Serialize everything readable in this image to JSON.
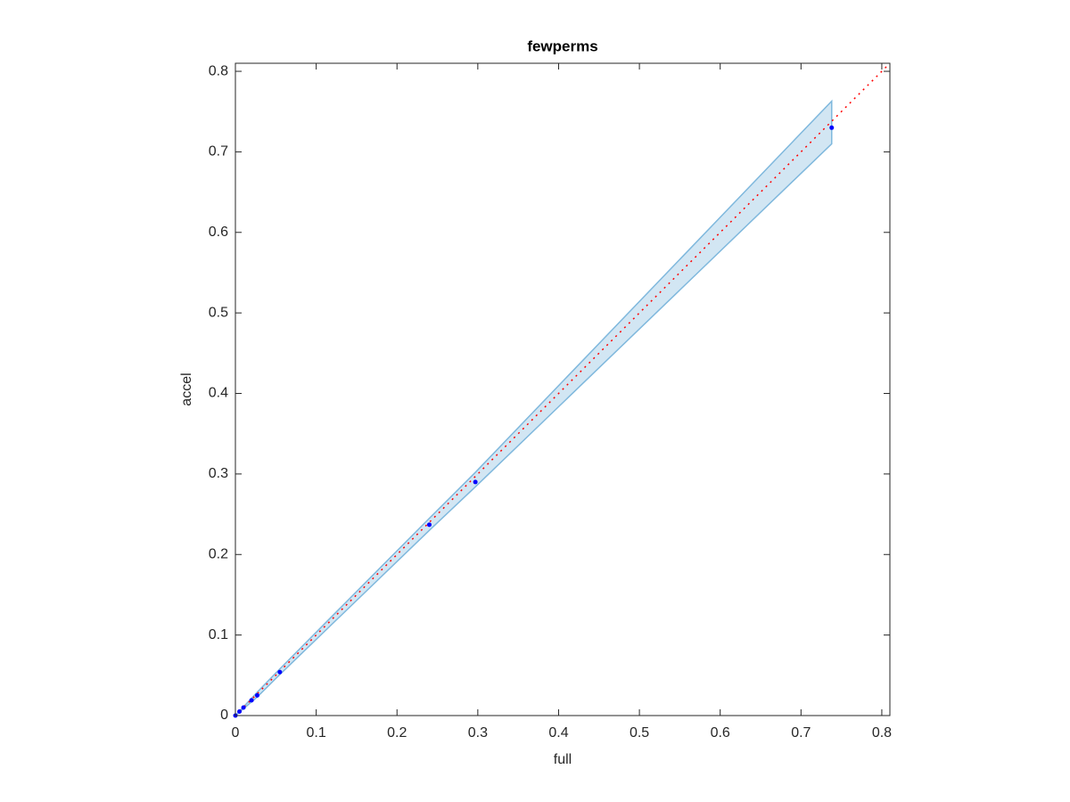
{
  "chart_data": {
    "type": "scatter",
    "title": "fewperms",
    "x_label": "full",
    "y_label": "accel",
    "xlim": [
      0,
      0.81
    ],
    "ylim": [
      0,
      0.81
    ],
    "xticks": [
      0,
      0.1,
      0.2,
      0.3,
      0.4,
      0.5,
      0.6,
      0.7,
      0.8
    ],
    "yticks": [
      0,
      0.1,
      0.2,
      0.3,
      0.4,
      0.5,
      0.6,
      0.7,
      0.8
    ],
    "band": {
      "color": "#7fb8dd",
      "x": [
        0,
        0.027,
        0.055,
        0.24,
        0.297,
        0.738
      ],
      "lower": [
        0,
        0.023,
        0.051,
        0.23,
        0.284,
        0.71
      ],
      "upper": [
        0,
        0.029,
        0.058,
        0.245,
        0.302,
        0.763
      ]
    },
    "reference_line": {
      "color": "#ff0000",
      "x": [
        0,
        0.81
      ],
      "y": [
        0,
        0.81
      ]
    },
    "points": {
      "color": "#0000ff",
      "x": [
        0,
        0.005,
        0.01,
        0.02,
        0.027,
        0.055,
        0.24,
        0.297,
        0.738
      ],
      "y": [
        0,
        0.005,
        0.01,
        0.019,
        0.025,
        0.054,
        0.237,
        0.29,
        0.73
      ]
    }
  }
}
